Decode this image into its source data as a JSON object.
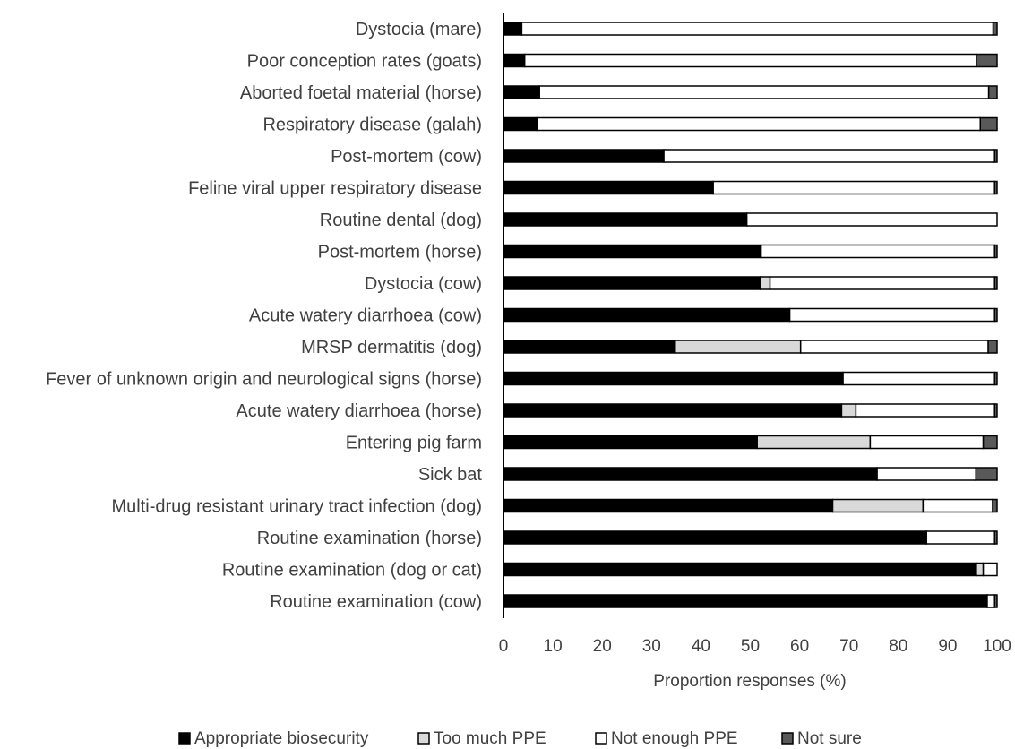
{
  "chart_data": {
    "type": "bar",
    "orientation": "horizontal",
    "stacked": true,
    "categories": [
      "Dystocia (mare)",
      "Poor conception rates (goats)",
      "Aborted foetal material (horse)",
      "Respiratory disease (galah)",
      "Post-mortem (cow)",
      "Feline viral upper respiratory disease",
      "Routine dental (dog)",
      "Post-mortem (horse)",
      "Dystocia (cow)",
      "Acute watery diarrhoea (cow)",
      "MRSP dermatitis (dog)",
      "Fever of unknown origin and neurological signs (horse)",
      "Acute watery diarrhoea (horse)",
      "Entering pig farm",
      "Sick bat",
      "Multi-drug resistant urinary tract infection (dog)",
      "Routine examination (horse)",
      "Routine examination (dog or cat)",
      "Routine examination (cow)"
    ],
    "series": [
      {
        "name": "Appropriate biosecurity",
        "color": "#000000",
        "values": [
          3.7,
          4.3,
          7.3,
          6.8,
          32.5,
          42.5,
          49.3,
          52.2,
          52.0,
          58.0,
          34.8,
          68.8,
          68.5,
          51.4,
          75.7,
          66.7,
          85.7,
          95.8,
          98.0
        ]
      },
      {
        "name": "Too much PPE",
        "color": "#d9d9d9",
        "values": [
          0,
          0,
          0,
          0,
          0,
          0,
          0,
          0,
          2.0,
          0,
          25.4,
          0,
          2.9,
          22.9,
          0,
          18.3,
          0,
          1.4,
          0
        ]
      },
      {
        "name": "Not enough PPE",
        "color": "#ffffff",
        "values": [
          95.5,
          91.5,
          91.0,
          89.8,
          67.0,
          57.0,
          50.7,
          47.3,
          45.5,
          41.5,
          38.0,
          30.7,
          28.1,
          22.9,
          20.0,
          14.1,
          13.8,
          2.8,
          1.5
        ]
      },
      {
        "name": "Not sure",
        "color": "#595959",
        "values": [
          0.8,
          4.2,
          1.7,
          3.4,
          0.5,
          0.5,
          0,
          0.5,
          0.5,
          0.5,
          1.8,
          0.5,
          0.5,
          2.8,
          4.3,
          0.9,
          0.5,
          0,
          0.5
        ]
      }
    ],
    "x_ticks": [
      "0",
      "10",
      "20",
      "30",
      "40",
      "50",
      "60",
      "70",
      "80",
      "90",
      "100"
    ],
    "xlabel": "Proportion responses (%)",
    "xlim": [
      0,
      100
    ],
    "grid": false,
    "legend_position": "bottom"
  }
}
